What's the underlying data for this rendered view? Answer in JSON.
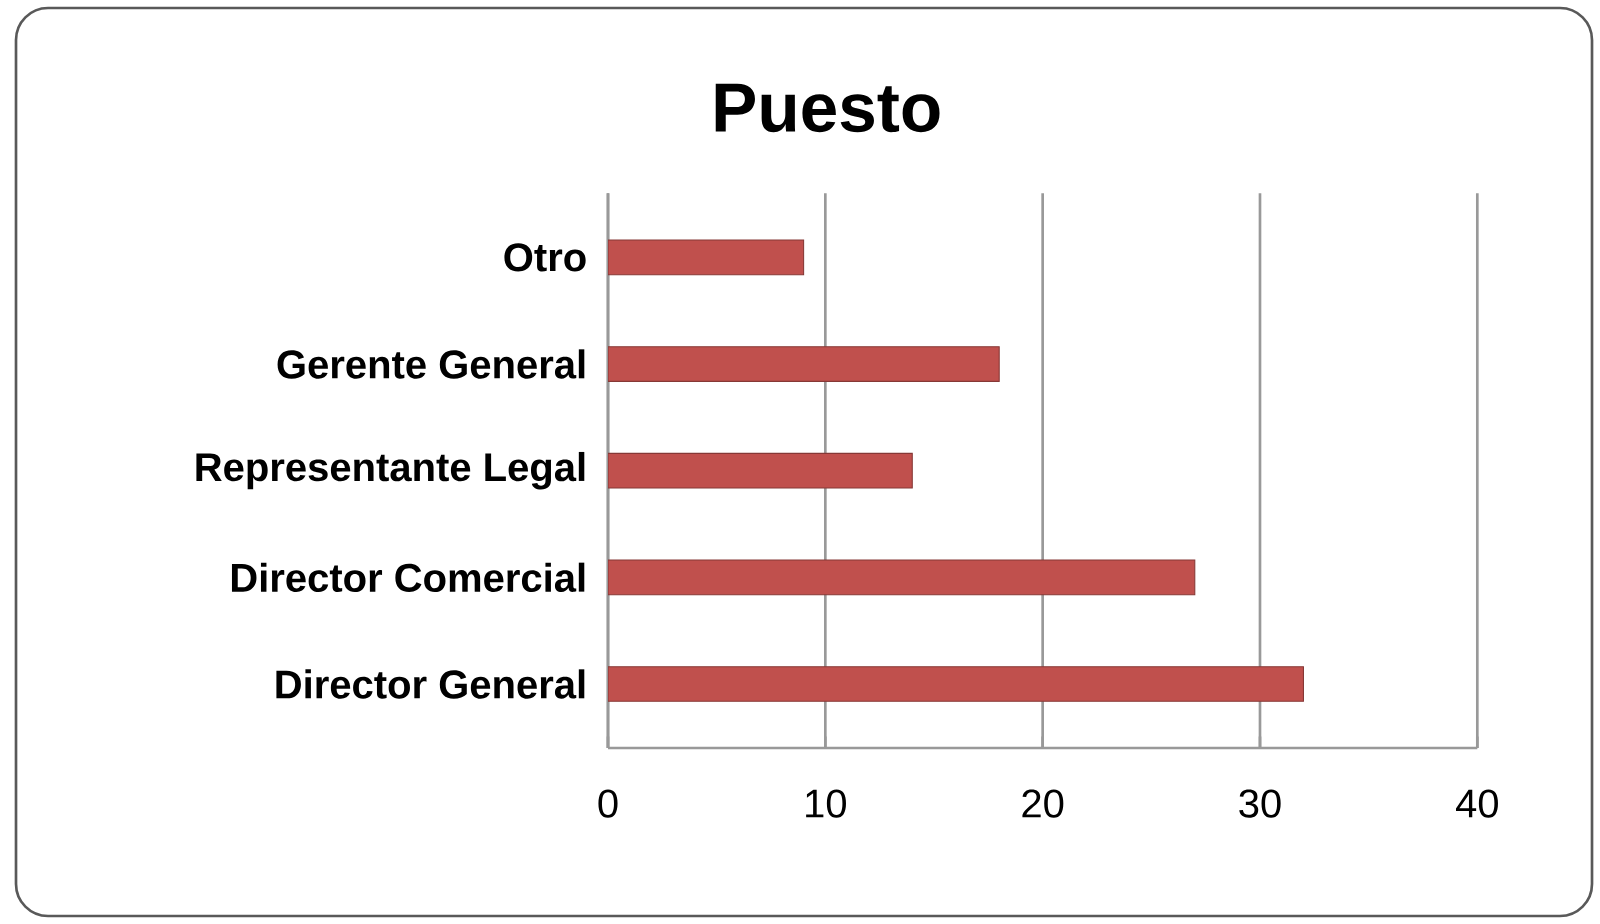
{
  "chart_data": {
    "type": "bar",
    "orientation": "horizontal",
    "title": "Puesto",
    "categories": [
      "Otro",
      "Gerente General",
      "Representante Legal",
      "Director Comercial",
      "Director General"
    ],
    "values": [
      9,
      18,
      14,
      27,
      32
    ],
    "color": "#c0504d",
    "xlim": [
      0,
      40
    ],
    "xticks": [
      0,
      10,
      20,
      30,
      40
    ],
    "grid": "x"
  }
}
